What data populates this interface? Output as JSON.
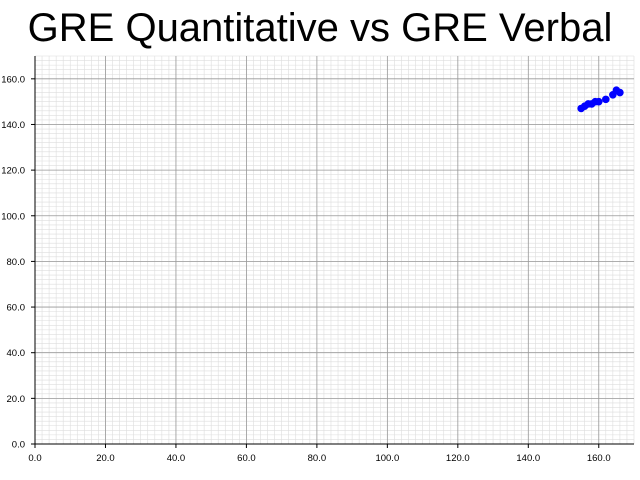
{
  "chart_data": {
    "type": "scatter",
    "title": "GRE Quantitative vs GRE Verbal",
    "xlabel": "",
    "ylabel": "",
    "xlim": [
      0,
      170
    ],
    "ylim": [
      0,
      170
    ],
    "x_ticks": [
      "0.0",
      "20.0",
      "40.0",
      "60.0",
      "80.0",
      "100.0",
      "120.0",
      "140.0",
      "160.0"
    ],
    "y_ticks": [
      "0.0",
      "20.0",
      "40.0",
      "60.0",
      "80.0",
      "100.0",
      "120.0",
      "140.0",
      "160.0"
    ],
    "grid": true,
    "series": [
      {
        "color": "#0000ff",
        "points": [
          {
            "x": 155,
            "y": 147
          },
          {
            "x": 156,
            "y": 148
          },
          {
            "x": 157,
            "y": 149
          },
          {
            "x": 158,
            "y": 149
          },
          {
            "x": 159,
            "y": 150
          },
          {
            "x": 160,
            "y": 150
          },
          {
            "x": 162,
            "y": 151
          },
          {
            "x": 164,
            "y": 153
          },
          {
            "x": 165,
            "y": 155
          },
          {
            "x": 166,
            "y": 154
          }
        ]
      }
    ]
  }
}
